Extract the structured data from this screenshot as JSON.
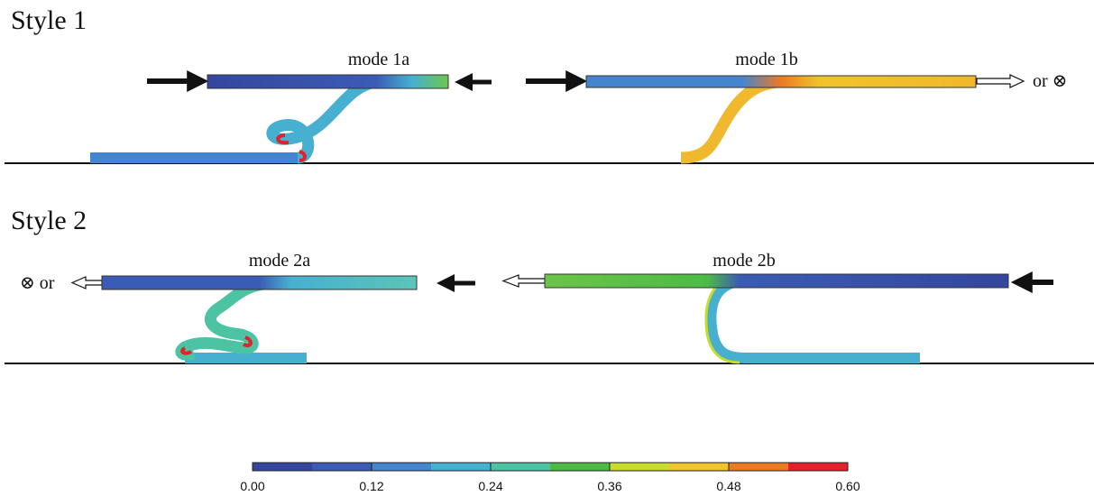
{
  "panels": [
    {
      "title": "Style 1",
      "modes": [
        "mode 1a",
        "mode 1b"
      ],
      "note": "or ⊗"
    },
    {
      "title": "Style 2",
      "modes": [
        "mode 2a",
        "mode 2b"
      ],
      "note": "⊗ or"
    }
  ],
  "colorbar": {
    "lim": [
      0,
      0.6
    ],
    "ticks": [
      {
        "value": 0,
        "label": "0.00"
      },
      {
        "value": 0.12,
        "label": "0.12"
      },
      {
        "value": 0.24,
        "label": "0.24"
      },
      {
        "value": 0.36,
        "label": "0.36"
      },
      {
        "value": 0.48,
        "label": "0.48"
      },
      {
        "value": 0.6,
        "label": "0.60"
      }
    ],
    "colors": [
      "#34469e",
      "#3b5cb4",
      "#4584cf",
      "#47b0d0",
      "#4cc4a4",
      "#4cbb45",
      "#c8dc2e",
      "#f0c42c",
      "#ec7a22",
      "#e4202a"
    ]
  }
}
